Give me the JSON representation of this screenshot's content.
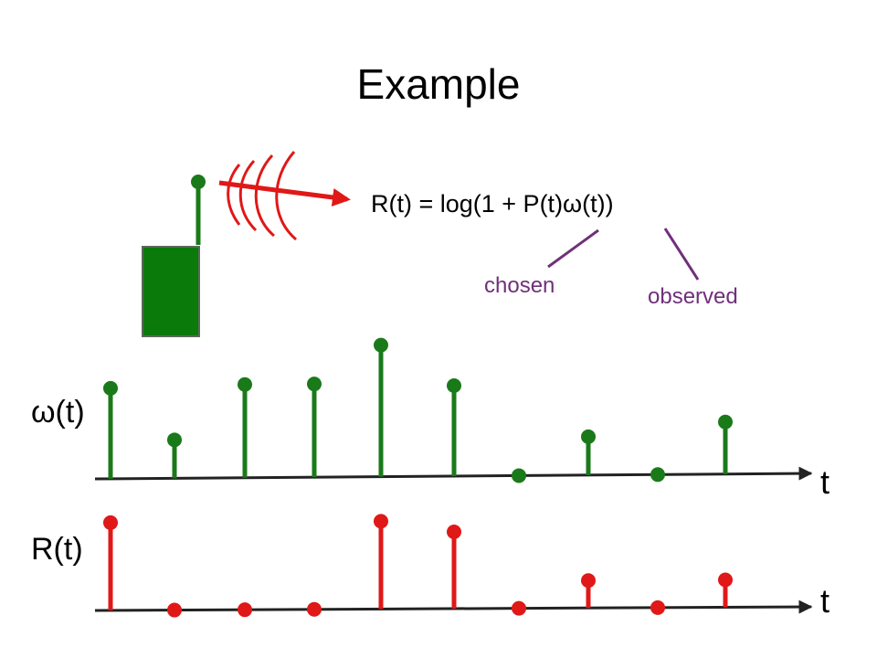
{
  "slide": {
    "title": "Example",
    "equation": "R(t) = log(1 + P(t)ω(t))",
    "annotation_chosen": "chosen",
    "annotation_observed": "observed"
  },
  "colors": {
    "green": "#1a7a1a",
    "red": "#e01818",
    "purple": "#70307a",
    "axis": "#222222"
  },
  "chart_data": [
    {
      "type": "stem",
      "ylabel": "ω(t)",
      "xlabel": "t",
      "values": [
        3.3,
        1.4,
        3.4,
        3.4,
        4.8,
        3.3,
        0,
        1.4,
        0,
        1.9
      ]
    },
    {
      "type": "stem",
      "ylabel": "R(t)",
      "xlabel": "t",
      "values": [
        3.2,
        0,
        0,
        0,
        3.2,
        2.8,
        0,
        1.0,
        0,
        1.0
      ]
    }
  ]
}
